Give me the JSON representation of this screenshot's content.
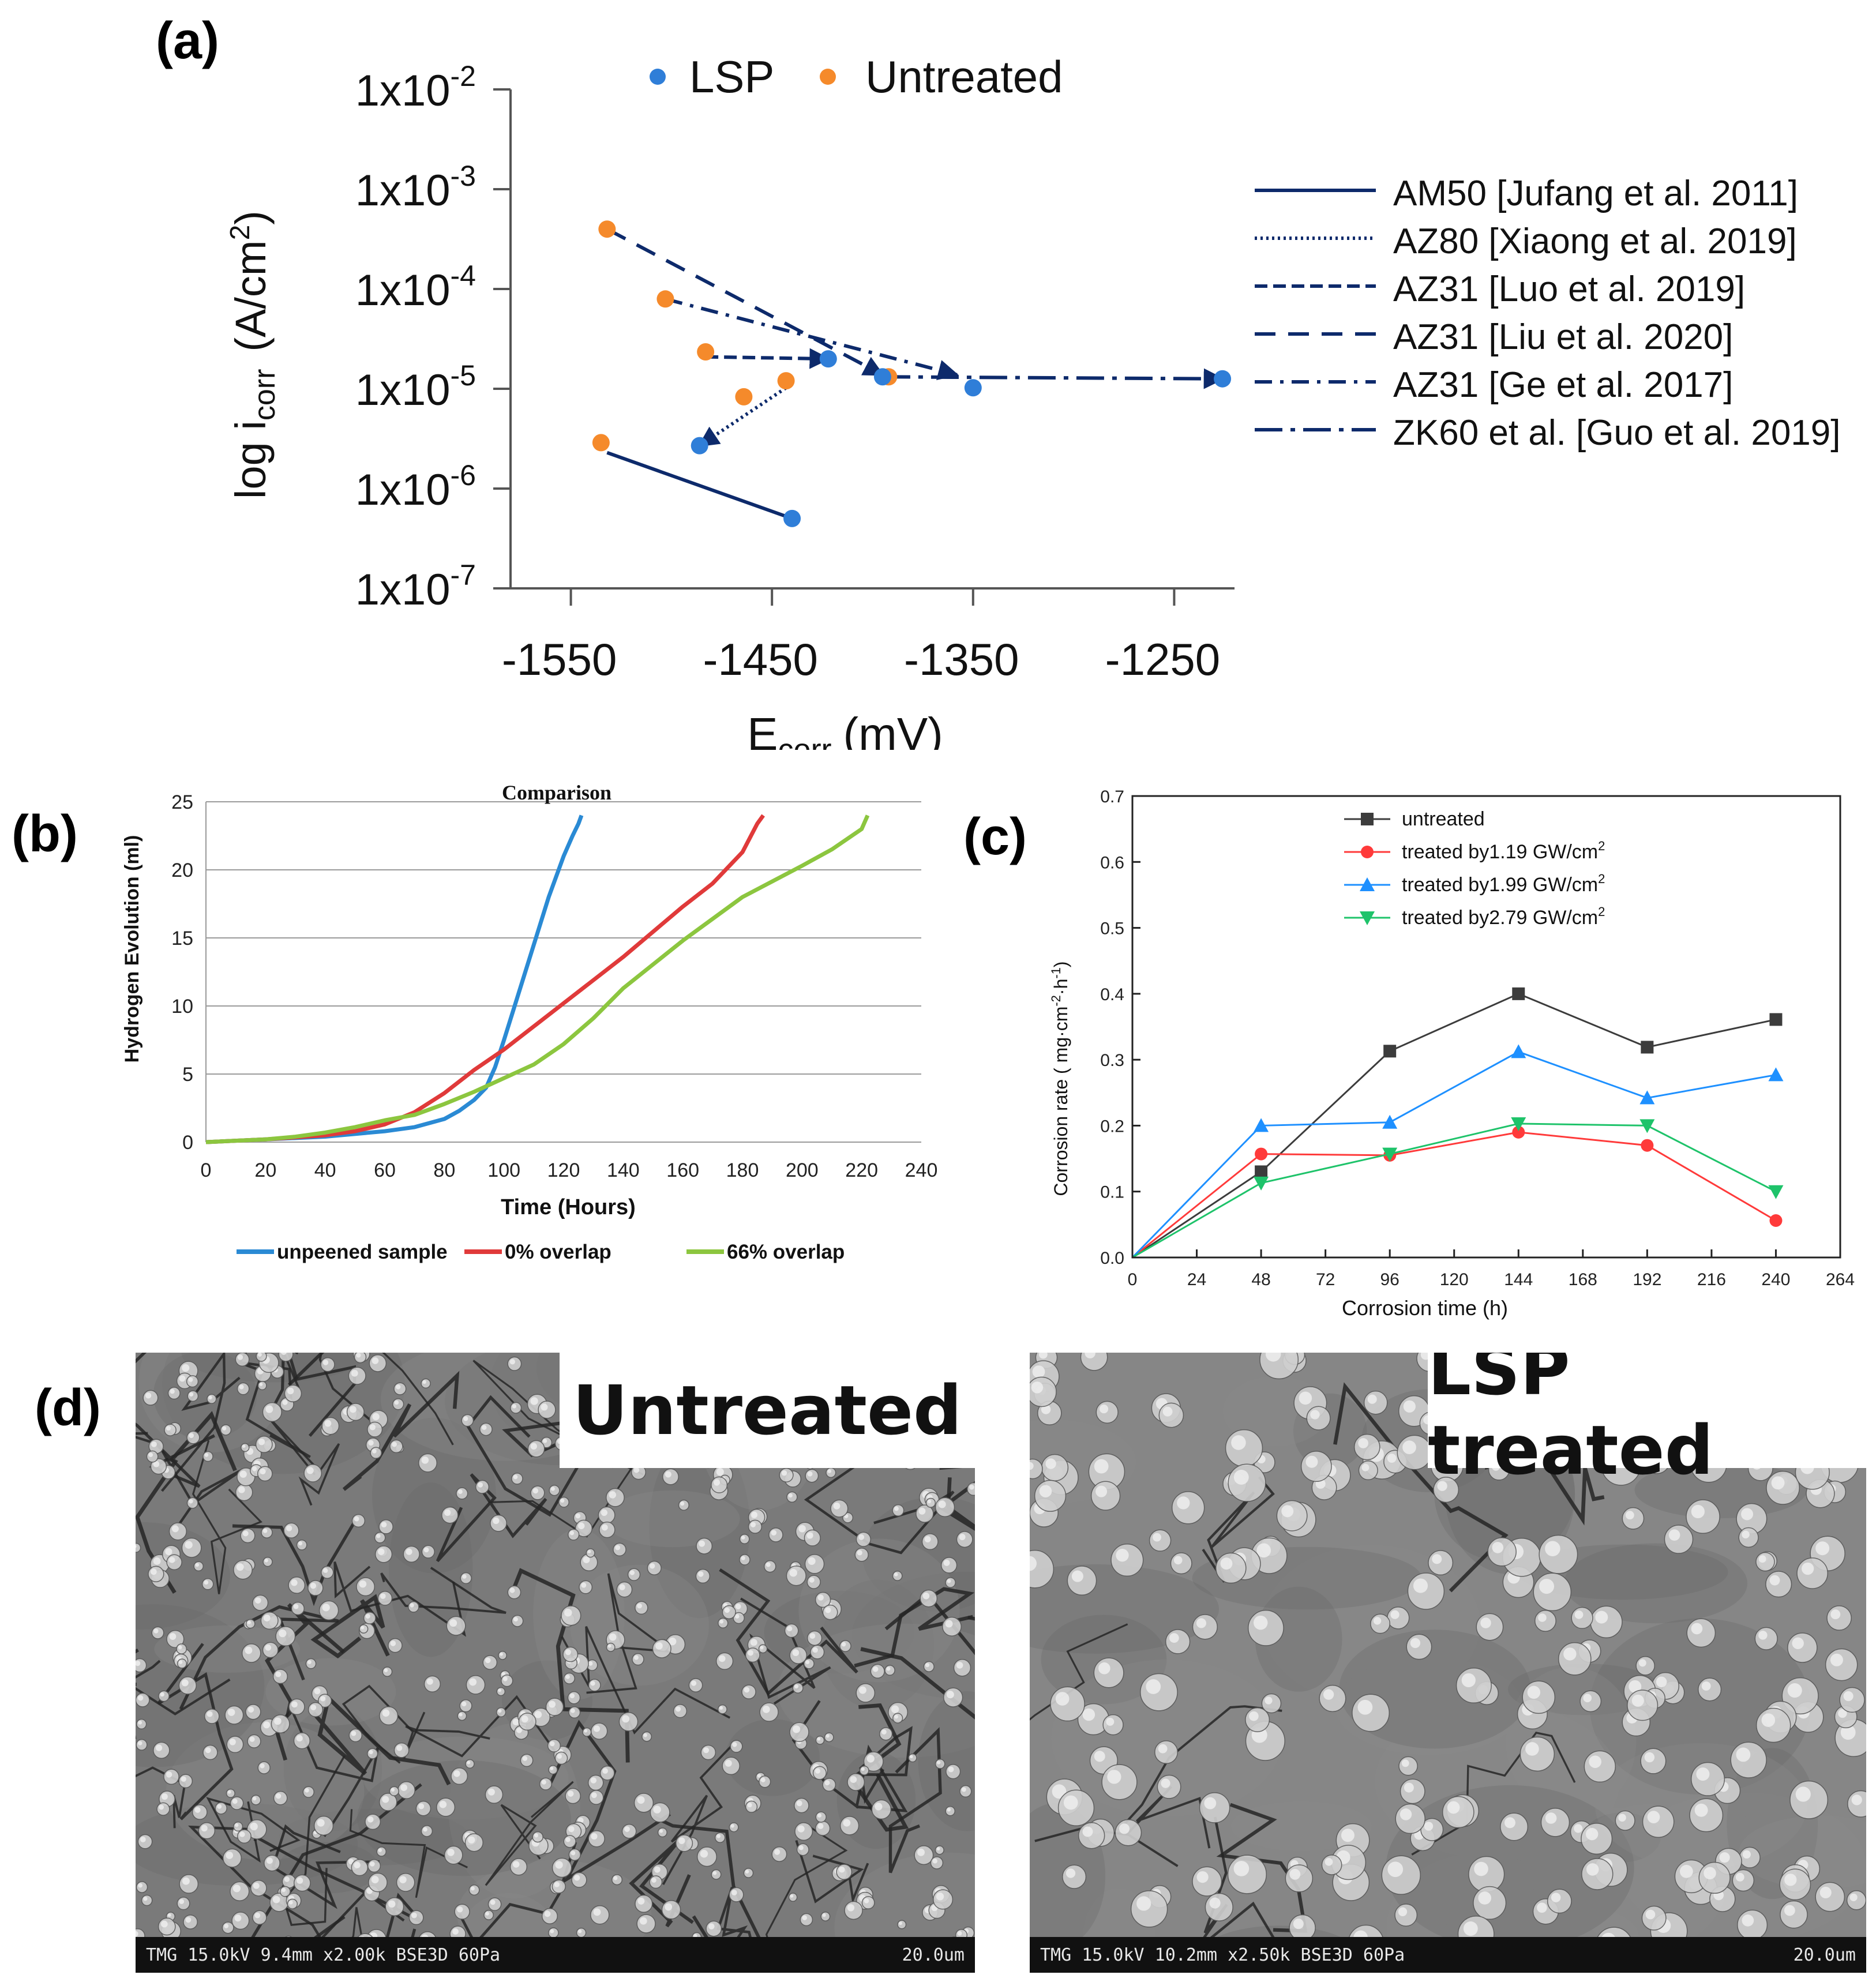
{
  "panel_labels": {
    "a": "(a)",
    "b": "(b)",
    "c": "(c)",
    "d": "(d)"
  },
  "colors": {
    "lsp": "#2f7ed8",
    "untreated": "#f58a2b",
    "navy": "#0d2a6b",
    "b_unpeened": "#2a8ad4",
    "b_0": "#e03a3a",
    "b_66": "#8cc63f",
    "c_untreated": "#3c3c3c",
    "c_119": "#ff3a3a",
    "c_199": "#1e90ff",
    "c_279": "#1ec36a"
  },
  "chart_data": [
    {
      "id": "a",
      "type": "scatter",
      "xlabel": "E",
      "xlabel_sub": "corr",
      "xlabel_unit": "(mV)",
      "ylabel_pre": "log i",
      "ylabel_sub": "corr",
      "ylabel_unit": "(A/cm",
      "ylabel_sup": "2",
      "ylabel_close": ")",
      "xlim": [
        -1580,
        -1220
      ],
      "ylim_log10": [
        -7,
        -2
      ],
      "xticks": [
        -1550,
        -1450,
        -1350,
        -1250
      ],
      "xtick_labels": [
        "-1550",
        "-1450",
        "-1350",
        "-1250"
      ],
      "yticks": [
        {
          "exp": -2,
          "base": "1x10",
          "sup": "-2"
        },
        {
          "exp": -3,
          "base": "1x10",
          "sup": "-3"
        },
        {
          "exp": -4,
          "base": "1x10",
          "sup": "-4"
        },
        {
          "exp": -5,
          "base": "1x10",
          "sup": "-5"
        },
        {
          "exp": -6,
          "base": "1x10",
          "sup": "-6"
        },
        {
          "exp": -7,
          "base": "1x10",
          "sup": "-7"
        }
      ],
      "scatter_legend": [
        {
          "name": "LSP",
          "color_key": "lsp"
        },
        {
          "name": "Untreated",
          "color_key": "untreated"
        }
      ],
      "untreated_points": [
        [
          -1532,
          -3.4
        ],
        [
          -1503,
          -4.1
        ],
        [
          -1535,
          -5.54
        ],
        [
          -1483,
          -4.63
        ],
        [
          -1464,
          -5.08
        ],
        [
          -1443,
          -4.92
        ],
        [
          -1392,
          -4.88
        ]
      ],
      "lsp_points": [
        [
          -1486,
          -5.57
        ],
        [
          -1440,
          -6.3
        ],
        [
          -1422,
          -4.7
        ],
        [
          -1395,
          -4.88
        ],
        [
          -1350,
          -4.99
        ],
        [
          -1226,
          -4.9
        ]
      ],
      "series": [
        {
          "name": "AM50 [Jufang  et al. 2011]",
          "style": "solid",
          "from": [
            -1532,
            -5.64
          ],
          "to": [
            -1440,
            -6.3
          ],
          "arrow": false
        },
        {
          "name": "AZ80 [Xiaong et al. 2019]",
          "style": "dotted",
          "from": [
            -1443,
            -4.99
          ],
          "to": [
            -1486,
            -5.57
          ],
          "arrow": true
        },
        {
          "name": "AZ31 [Luo et al. 2019]",
          "style": "dash-short",
          "from": [
            -1483,
            -4.68
          ],
          "to": [
            -1422,
            -4.7
          ],
          "arrow": true
        },
        {
          "name": "AZ31 [Liu et al. 2020]",
          "style": "dash-long",
          "from": [
            -1532,
            -3.4
          ],
          "to": [
            -1395,
            -4.86
          ],
          "arrow": true
        },
        {
          "name": "AZ31 [Ge et al. 2017]",
          "style": "dashdot",
          "from": [
            -1503,
            -4.1
          ],
          "to": [
            -1358,
            -4.86
          ],
          "arrow": true
        },
        {
          "name": "ZK60 et al. [Guo et al. 2019]",
          "style": "dashdot-long",
          "from": [
            -1395,
            -4.88
          ],
          "to": [
            -1226,
            -4.9
          ],
          "arrow": true
        }
      ]
    },
    {
      "id": "b",
      "type": "line",
      "title": "Comparison",
      "xlabel": "Time (Hours)",
      "ylabel": "Hydrogen Evolution (ml)",
      "xlim": [
        0,
        240
      ],
      "ylim": [
        0,
        25
      ],
      "xticks": [
        0,
        20,
        40,
        60,
        80,
        100,
        120,
        140,
        160,
        180,
        200,
        220,
        240
      ],
      "yticks": [
        0,
        5,
        10,
        15,
        20,
        25
      ],
      "series": [
        {
          "name": "unpeened sample",
          "color_key": "b_unpeened",
          "x": [
            0,
            20,
            40,
            60,
            70,
            80,
            85,
            90,
            94,
            97,
            100,
            105,
            110,
            115,
            120,
            123,
            125,
            126
          ],
          "y": [
            0,
            0.2,
            0.4,
            0.8,
            1.1,
            1.7,
            2.3,
            3.1,
            4.0,
            5.5,
            7.5,
            11,
            14.5,
            18,
            21,
            22.5,
            23.4,
            24
          ]
        },
        {
          "name": "0% overlap",
          "color_key": "b_0",
          "x": [
            0,
            20,
            40,
            50,
            60,
            70,
            80,
            90,
            100,
            110,
            120,
            140,
            160,
            170,
            180,
            185,
            187
          ],
          "y": [
            0,
            0.2,
            0.5,
            0.8,
            1.3,
            2.2,
            3.6,
            5.3,
            6.8,
            8.5,
            10.2,
            13.6,
            17.3,
            19.0,
            21.3,
            23.4,
            24
          ]
        },
        {
          "name": "66% overlap",
          "color_key": "b_66",
          "x": [
            0,
            20,
            30,
            40,
            50,
            60,
            70,
            80,
            90,
            100,
            110,
            120,
            130,
            140,
            160,
            180,
            200,
            210,
            220,
            222
          ],
          "y": [
            0,
            0.2,
            0.4,
            0.7,
            1.1,
            1.6,
            2.0,
            2.8,
            3.7,
            4.7,
            5.7,
            7.2,
            9.1,
            11.3,
            14.8,
            18.0,
            20.3,
            21.5,
            23.0,
            24
          ]
        }
      ]
    },
    {
      "id": "c",
      "type": "line",
      "xlabel": "Corrosion time (h)",
      "ylabel": "Corrosion rate ( mg·cm-2·h-1)",
      "ylabel_main": "Corrosion rate ( mg·cm",
      "ylabel_sup1": "-2",
      "ylabel_mid": "·h",
      "ylabel_sup2": "-1",
      "ylabel_close": ")",
      "xlim": [
        0,
        264
      ],
      "ylim": [
        0,
        0.7
      ],
      "xticks": [
        0,
        24,
        48,
        72,
        96,
        120,
        144,
        168,
        192,
        216,
        240,
        264
      ],
      "yticks": [
        "0.0",
        "0.1",
        "0.2",
        "0.3",
        "0.4",
        "0.5",
        "0.6",
        "0.7"
      ],
      "x": [
        0,
        48,
        96,
        144,
        192,
        240
      ],
      "series": [
        {
          "name": "untreated",
          "sup": "",
          "marker": "square",
          "color_key": "c_untreated",
          "values": [
            0,
            0.13,
            0.313,
            0.4,
            0.319,
            0.361
          ]
        },
        {
          "name": "treated by1.19 GW/cm",
          "sup": "2",
          "marker": "circle",
          "color_key": "c_119",
          "values": [
            0,
            0.157,
            0.155,
            0.19,
            0.17,
            0.056
          ]
        },
        {
          "name": "treated by1.99 GW/cm",
          "sup": "2",
          "marker": "triangle-up",
          "color_key": "c_199",
          "values": [
            0,
            0.2,
            0.205,
            0.312,
            0.242,
            0.277
          ]
        },
        {
          "name": "treated by2.79 GW/cm",
          "sup": "2",
          "marker": "triangle-down",
          "color_key": "c_279",
          "values": [
            0,
            0.113,
            0.157,
            0.203,
            0.2,
            0.1
          ]
        }
      ]
    }
  ],
  "sem_images": [
    {
      "label": "Untreated",
      "footer_left": "TMG 15.0kV 9.4mm x2.00k BSE3D 60Pa",
      "footer_right": "20.0um"
    },
    {
      "label": "LSP treated",
      "footer_left": "TMG 15.0kV 10.2mm x2.50k BSE3D 60Pa",
      "footer_right": "20.0um"
    }
  ]
}
